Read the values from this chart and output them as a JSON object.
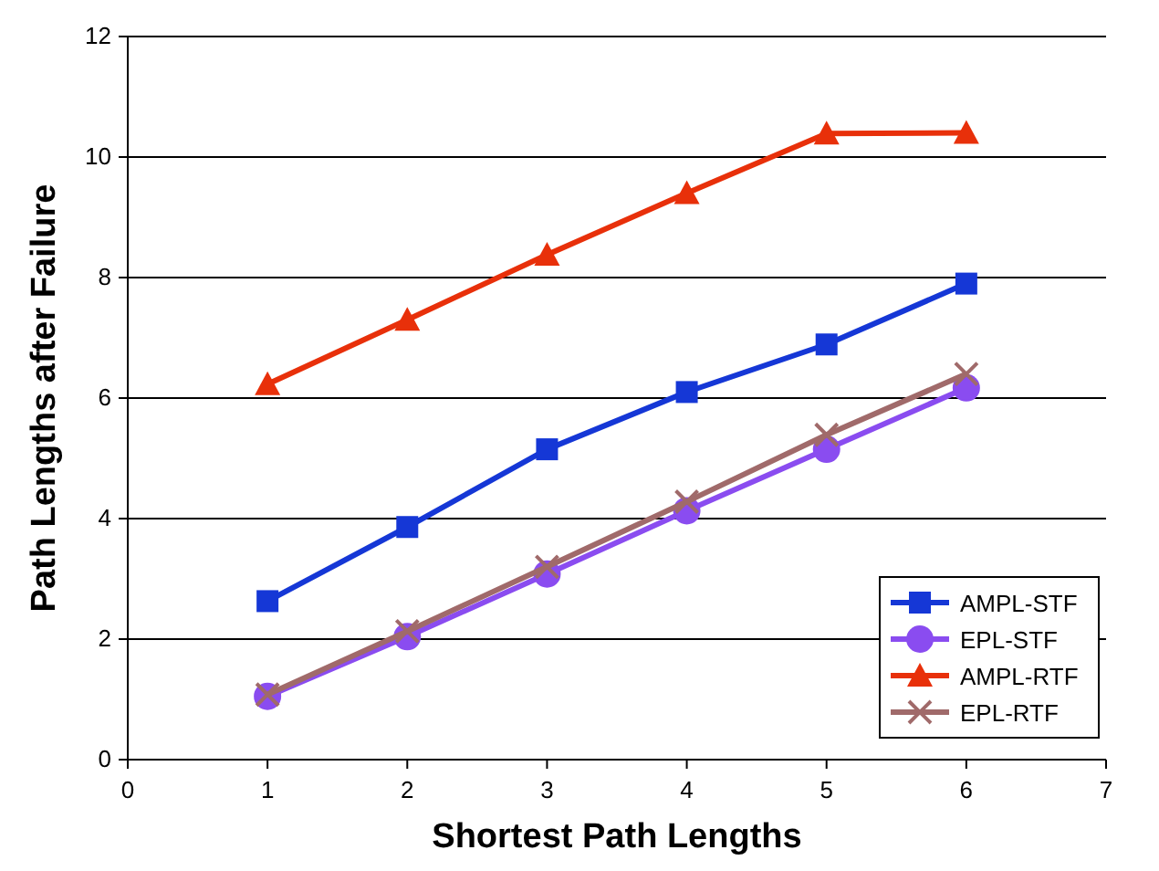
{
  "chart_data": {
    "type": "line",
    "xlabel": "Shortest Path Lengths",
    "ylabel": "Path Lengths after Failure",
    "x": [
      1,
      2,
      3,
      4,
      5,
      6
    ],
    "series": [
      {
        "name": "AMPL-STF",
        "color": "#1537d6",
        "marker": "square",
        "values": [
          2.63,
          3.86,
          5.15,
          6.1,
          6.89,
          7.9
        ]
      },
      {
        "name": "EPL-STF",
        "color": "#8a4cf0",
        "marker": "circle",
        "values": [
          1.05,
          2.04,
          3.08,
          4.13,
          5.15,
          6.17
        ]
      },
      {
        "name": "AMPL-RTF",
        "color": "#e8300a",
        "marker": "triangle",
        "values": [
          6.23,
          7.3,
          8.38,
          9.4,
          10.39,
          10.4
        ]
      },
      {
        "name": "EPL-RTF",
        "color": "#a06a6a",
        "marker": "cross",
        "values": [
          1.08,
          2.13,
          3.2,
          4.28,
          5.39,
          6.4
        ]
      }
    ],
    "xlim": [
      0,
      7
    ],
    "xticks": [
      0,
      1,
      2,
      3,
      4,
      5,
      6,
      7
    ],
    "ylim": [
      0,
      12
    ],
    "yticks": [
      0,
      2,
      4,
      6,
      8,
      10,
      12
    ],
    "grid": "y",
    "legend": "bottom right"
  }
}
